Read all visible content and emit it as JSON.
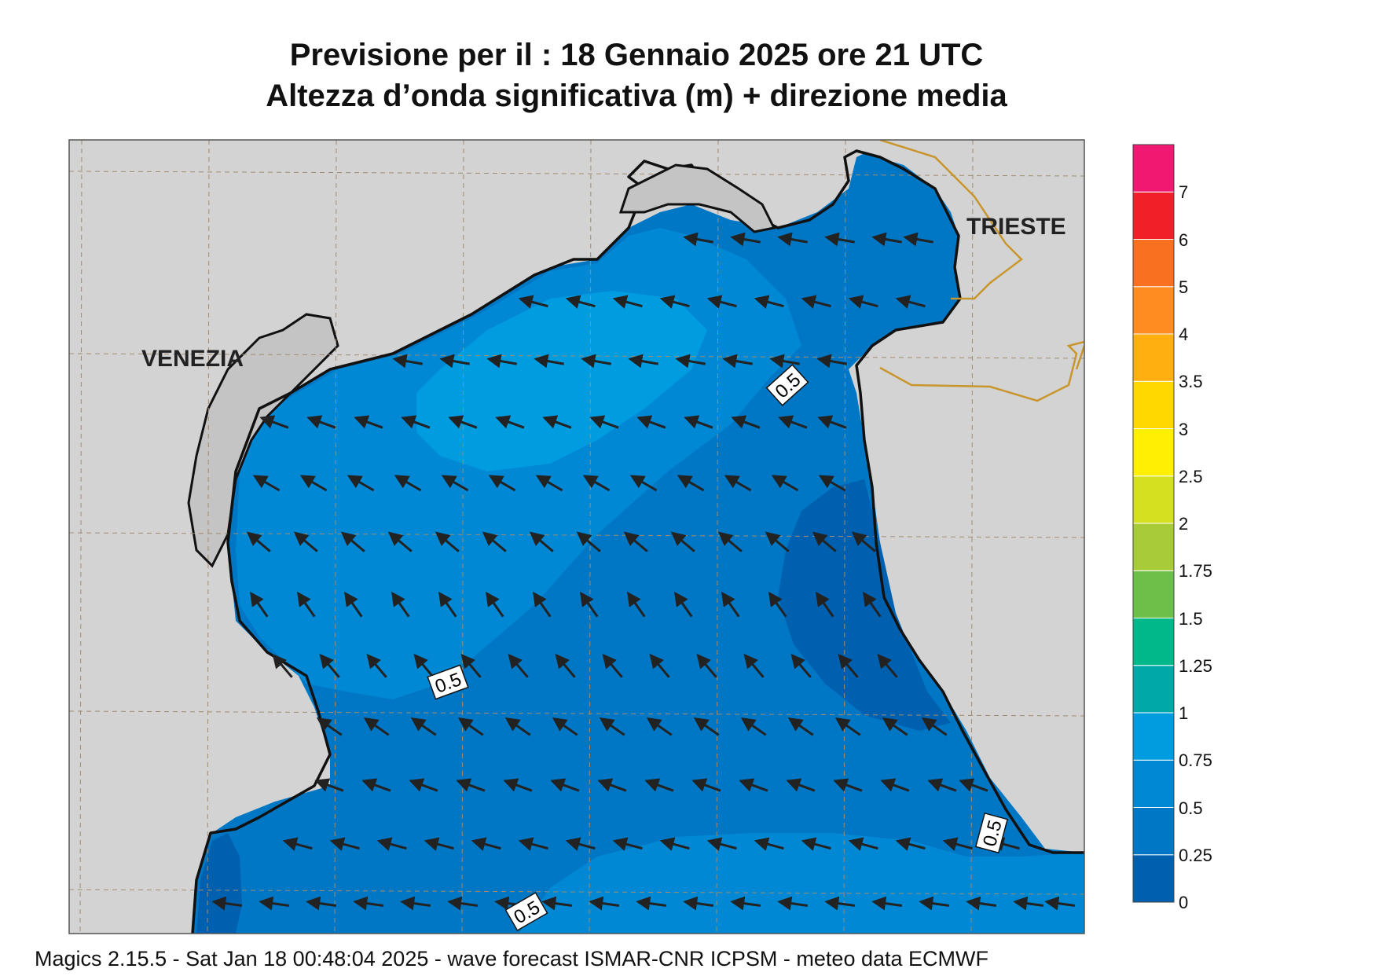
{
  "title_line1": "Previsione per il  :  18  Gennaio  2025   ore 21 UTC",
  "title_line2": "Altezza d’onda significativa (m) + direzione media",
  "footer": "Magics 2.15.5 - Sat Jan 18 00:48:04 2025 - wave forecast  ISMAR-CNR  ICPSM - meteo data   ECMWF",
  "cities": {
    "venezia": "VENEZIA",
    "trieste": "TRIESTE"
  },
  "contour_labels": [
    "0.5",
    "0.5",
    "0.5",
    "0.5"
  ],
  "legend": {
    "ticks": [
      "0",
      "0.25",
      "0.5",
      "0.75",
      "1",
      "1.25",
      "1.5",
      "1.75",
      "2",
      "2.5",
      "3",
      "3.5",
      "4",
      "5",
      "6",
      "7"
    ],
    "colors": [
      "#0060b0",
      "#0077c4",
      "#0088d4",
      "#009ce0",
      "#00a8a8",
      "#00b88a",
      "#6cc04a",
      "#a8cc38",
      "#d4e020",
      "#ffef00",
      "#ffd800",
      "#ffb010",
      "#ff8c20",
      "#f87020",
      "#f02028",
      "#f01870"
    ]
  },
  "colors": {
    "land": "#d3d3d3",
    "sea_lowest": "#0060b0",
    "sea_low": "#0077c4",
    "sea_mid": "#0088d4",
    "sea_high": "#009ce0",
    "border": "#c8962c"
  }
}
